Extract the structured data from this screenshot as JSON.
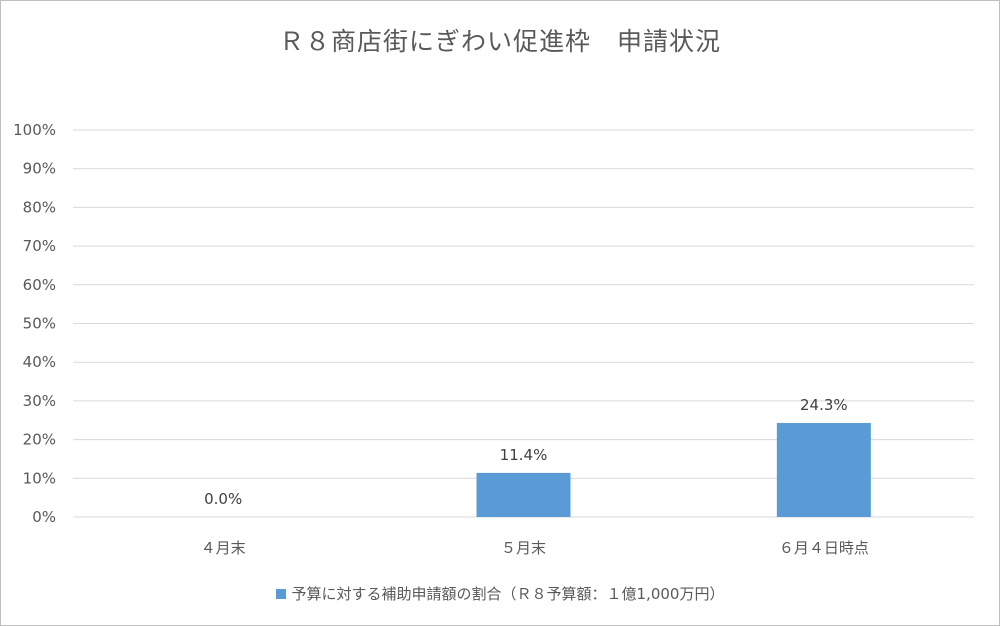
{
  "chart_data": {
    "type": "bar",
    "title": "Ｒ８商店街にぎわい促進枠　申請状況",
    "categories": [
      "４月末",
      "５月末",
      "６月４日時点"
    ],
    "series": [
      {
        "name": "予算に対する補助申請額の割合（Ｒ８予算額：１億1,000万円）",
        "values": [
          0.0,
          11.4,
          24.3
        ],
        "labels": [
          "0.0%",
          "11.4%",
          "24.3%"
        ],
        "color": "#5b9bd5"
      }
    ],
    "y_ticks": [
      "0%",
      "10%",
      "20%",
      "30%",
      "40%",
      "50%",
      "60%",
      "70%",
      "80%",
      "90%",
      "100%"
    ],
    "ylim": [
      0,
      100
    ],
    "grid": true,
    "legend_position": "bottom"
  }
}
